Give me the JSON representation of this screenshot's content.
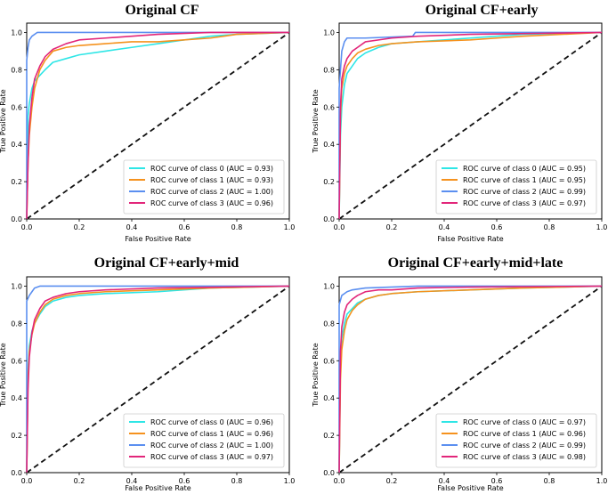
{
  "figure": {
    "colors": {
      "class0": "#2ee6e6",
      "class1": "#f5921e",
      "class2": "#5b8ff0",
      "class3": "#e2267a",
      "chance": "#111111",
      "legend_border": "#cccccc"
    }
  },
  "chart_data": [
    {
      "type": "line",
      "title": "Original CF",
      "xlabel": "False Positive Rate",
      "ylabel": "True Positive Rate",
      "xlim": [
        0.0,
        1.0
      ],
      "ylim": [
        0.0,
        1.05
      ],
      "xticks": [
        "0.0",
        "0.2",
        "0.4",
        "0.6",
        "0.8",
        "1.0"
      ],
      "yticks": [
        "0.0",
        "0.2",
        "0.4",
        "0.6",
        "0.8",
        "1.0"
      ],
      "legend_position": "lower-right",
      "grid": false,
      "reference_line": {
        "x": [
          0,
          1
        ],
        "y": [
          0,
          1
        ],
        "style": "dashed"
      },
      "series": [
        {
          "name": "ROC curve of class 0 (AUC = 0.93)",
          "color_key": "class0",
          "x": [
            0,
            0.005,
            0.01,
            0.02,
            0.03,
            0.05,
            0.07,
            0.1,
            0.15,
            0.2,
            0.3,
            0.4,
            0.5,
            0.6,
            0.7,
            0.8,
            1.0
          ],
          "y": [
            0,
            0.55,
            0.62,
            0.7,
            0.74,
            0.77,
            0.8,
            0.84,
            0.86,
            0.88,
            0.9,
            0.92,
            0.94,
            0.96,
            0.98,
            0.99,
            1.0
          ]
        },
        {
          "name": "ROC curve of class 1 (AUC = 0.93)",
          "color_key": "class1",
          "x": [
            0,
            0.005,
            0.01,
            0.02,
            0.03,
            0.05,
            0.07,
            0.1,
            0.15,
            0.2,
            0.3,
            0.4,
            0.5,
            0.6,
            0.7,
            0.8,
            1.0
          ],
          "y": [
            0,
            0.3,
            0.45,
            0.6,
            0.7,
            0.8,
            0.85,
            0.9,
            0.92,
            0.93,
            0.94,
            0.95,
            0.95,
            0.96,
            0.97,
            0.99,
            1.0
          ]
        },
        {
          "name": "ROC curve of class 2 (AUC = 1.00)",
          "color_key": "class2",
          "x": [
            0,
            0,
            0.005,
            0.01,
            0.02,
            0.04,
            1.0
          ],
          "y": [
            0,
            0.85,
            0.92,
            0.96,
            0.98,
            1.0,
            1.0
          ]
        },
        {
          "name": "ROC curve of class 3 (AUC = 0.96)",
          "color_key": "class3",
          "x": [
            0,
            0.005,
            0.01,
            0.02,
            0.03,
            0.05,
            0.07,
            0.1,
            0.15,
            0.2,
            0.3,
            0.4,
            0.5,
            0.7,
            1.0
          ],
          "y": [
            0,
            0.3,
            0.5,
            0.65,
            0.75,
            0.82,
            0.87,
            0.91,
            0.94,
            0.96,
            0.97,
            0.98,
            0.99,
            1.0,
            1.0
          ]
        }
      ]
    },
    {
      "type": "line",
      "title": "Original CF+early",
      "xlabel": "False Positive Rate",
      "ylabel": "True Positive Rate",
      "xlim": [
        0.0,
        1.0
      ],
      "ylim": [
        0.0,
        1.05
      ],
      "xticks": [
        "0.0",
        "0.2",
        "0.4",
        "0.6",
        "0.8",
        "1.0"
      ],
      "yticks": [
        "0.0",
        "0.2",
        "0.4",
        "0.6",
        "0.8",
        "1.0"
      ],
      "legend_position": "lower-right",
      "grid": false,
      "reference_line": {
        "x": [
          0,
          1
        ],
        "y": [
          0,
          1
        ],
        "style": "dashed"
      },
      "series": [
        {
          "name": "ROC curve of class 0 (AUC = 0.95)",
          "color_key": "class0",
          "x": [
            0,
            0.005,
            0.01,
            0.02,
            0.03,
            0.05,
            0.07,
            0.1,
            0.15,
            0.2,
            0.3,
            0.5,
            0.7,
            1.0
          ],
          "y": [
            0,
            0.45,
            0.6,
            0.72,
            0.78,
            0.82,
            0.86,
            0.89,
            0.92,
            0.94,
            0.95,
            0.97,
            0.99,
            1.0
          ]
        },
        {
          "name": "ROC curve of class 1 (AUC = 0.95)",
          "color_key": "class1",
          "x": [
            0,
            0.005,
            0.01,
            0.02,
            0.03,
            0.05,
            0.07,
            0.1,
            0.15,
            0.2,
            0.3,
            0.5,
            0.6,
            0.7,
            1.0
          ],
          "y": [
            0,
            0.55,
            0.7,
            0.78,
            0.82,
            0.86,
            0.89,
            0.91,
            0.93,
            0.94,
            0.95,
            0.96,
            0.97,
            0.98,
            1.0
          ]
        },
        {
          "name": "ROC curve of class 2 (AUC = 0.99)",
          "color_key": "class2",
          "x": [
            0,
            0,
            0.01,
            0.02,
            0.03,
            0.1,
            0.28,
            0.29,
            1.0
          ],
          "y": [
            0,
            0.7,
            0.9,
            0.95,
            0.97,
            0.97,
            0.98,
            1.0,
            1.0
          ]
        },
        {
          "name": "ROC curve of class 3 (AUC = 0.97)",
          "color_key": "class3",
          "x": [
            0,
            0.005,
            0.01,
            0.02,
            0.03,
            0.05,
            0.07,
            0.1,
            0.15,
            0.2,
            0.3,
            0.5,
            1.0
          ],
          "y": [
            0,
            0.6,
            0.75,
            0.82,
            0.86,
            0.9,
            0.92,
            0.95,
            0.96,
            0.97,
            0.98,
            0.99,
            1.0
          ]
        }
      ]
    },
    {
      "type": "line",
      "title": "Original CF+early+mid",
      "xlabel": "False Positive Rate",
      "ylabel": "True Positive Rate",
      "xlim": [
        0.0,
        1.0
      ],
      "ylim": [
        0.0,
        1.05
      ],
      "xticks": [
        "0.0",
        "0.2",
        "0.4",
        "0.6",
        "0.8",
        "1.0"
      ],
      "yticks": [
        "0.0",
        "0.2",
        "0.4",
        "0.6",
        "0.8",
        "1.0"
      ],
      "legend_position": "lower-right",
      "grid": false,
      "reference_line": {
        "x": [
          0,
          1
        ],
        "y": [
          0,
          1
        ],
        "style": "dashed"
      },
      "series": [
        {
          "name": "ROC curve of class 0 (AUC = 0.96)",
          "color_key": "class0",
          "x": [
            0,
            0.005,
            0.01,
            0.02,
            0.03,
            0.05,
            0.07,
            0.1,
            0.15,
            0.2,
            0.3,
            0.5,
            0.7,
            1.0
          ],
          "y": [
            0,
            0.55,
            0.68,
            0.76,
            0.8,
            0.85,
            0.89,
            0.92,
            0.94,
            0.95,
            0.96,
            0.97,
            0.99,
            1.0
          ]
        },
        {
          "name": "ROC curve of class 1 (AUC = 0.96)",
          "color_key": "class1",
          "x": [
            0,
            0.005,
            0.01,
            0.02,
            0.03,
            0.05,
            0.07,
            0.1,
            0.15,
            0.2,
            0.3,
            0.5,
            0.7,
            1.0
          ],
          "y": [
            0,
            0.5,
            0.65,
            0.74,
            0.8,
            0.86,
            0.9,
            0.93,
            0.95,
            0.96,
            0.97,
            0.98,
            0.99,
            1.0
          ]
        },
        {
          "name": "ROC curve of class 2 (AUC = 1.00)",
          "color_key": "class2",
          "x": [
            0,
            0,
            0.01,
            0.02,
            0.03,
            0.05,
            1.0
          ],
          "y": [
            0,
            0.92,
            0.95,
            0.97,
            0.99,
            1.0,
            1.0
          ]
        },
        {
          "name": "ROC curve of class 3 (AUC = 0.97)",
          "color_key": "class3",
          "x": [
            0,
            0.005,
            0.01,
            0.02,
            0.03,
            0.05,
            0.07,
            0.1,
            0.15,
            0.2,
            0.3,
            0.5,
            1.0
          ],
          "y": [
            0,
            0.45,
            0.62,
            0.75,
            0.82,
            0.88,
            0.92,
            0.94,
            0.96,
            0.97,
            0.98,
            0.99,
            1.0
          ]
        }
      ]
    },
    {
      "type": "line",
      "title": "Original CF+early+mid+late",
      "xlabel": "False Positive Rate",
      "ylabel": "True Positive Rate",
      "xlim": [
        0.0,
        1.0
      ],
      "ylim": [
        0.0,
        1.05
      ],
      "xticks": [
        "0.0",
        "0.2",
        "0.4",
        "0.6",
        "0.8",
        "1.0"
      ],
      "yticks": [
        "0.0",
        "0.2",
        "0.4",
        "0.6",
        "0.8",
        "1.0"
      ],
      "legend_position": "lower-right",
      "grid": false,
      "reference_line": {
        "x": [
          0,
          1
        ],
        "y": [
          0,
          1
        ],
        "style": "dashed"
      },
      "series": [
        {
          "name": "ROC curve of class 0 (AUC = 0.97)",
          "color_key": "class0",
          "x": [
            0,
            0.005,
            0.01,
            0.02,
            0.03,
            0.05,
            0.07,
            0.1,
            0.15,
            0.2,
            0.3,
            0.5,
            0.7,
            1.0
          ],
          "y": [
            0,
            0.6,
            0.72,
            0.8,
            0.85,
            0.88,
            0.91,
            0.93,
            0.95,
            0.96,
            0.97,
            0.98,
            0.99,
            1.0
          ]
        },
        {
          "name": "ROC curve of class 1 (AUC = 0.96)",
          "color_key": "class1",
          "x": [
            0,
            0.005,
            0.01,
            0.02,
            0.03,
            0.05,
            0.07,
            0.1,
            0.15,
            0.2,
            0.3,
            0.5,
            0.7,
            1.0
          ],
          "y": [
            0,
            0.5,
            0.66,
            0.76,
            0.82,
            0.87,
            0.9,
            0.93,
            0.95,
            0.96,
            0.97,
            0.98,
            0.99,
            1.0
          ]
        },
        {
          "name": "ROC curve of class 2 (AUC = 0.99)",
          "color_key": "class2",
          "x": [
            0,
            0,
            0.01,
            0.02,
            0.03,
            0.05,
            0.1,
            0.3,
            1.0
          ],
          "y": [
            0,
            0.9,
            0.95,
            0.96,
            0.97,
            0.98,
            0.99,
            1.0,
            1.0
          ]
        },
        {
          "name": "ROC curve of class 3 (AUC = 0.98)",
          "color_key": "class3",
          "x": [
            0,
            0.005,
            0.01,
            0.02,
            0.03,
            0.05,
            0.07,
            0.1,
            0.15,
            0.2,
            0.3,
            0.5,
            1.0
          ],
          "y": [
            0,
            0.65,
            0.78,
            0.86,
            0.9,
            0.93,
            0.95,
            0.97,
            0.98,
            0.98,
            0.99,
            0.995,
            1.0
          ]
        }
      ]
    }
  ]
}
